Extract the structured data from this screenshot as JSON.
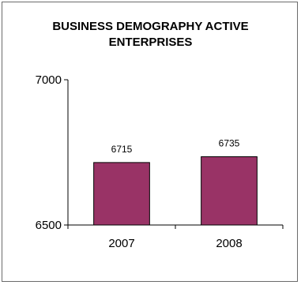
{
  "chart_data": {
    "type": "bar",
    "title": "BUSINESS DEMOGRAPHY ACTIVE\nENTERPRISES",
    "categories": [
      "2007",
      "2008"
    ],
    "values": [
      6715,
      6735
    ],
    "data_labels": [
      "6715",
      "6735"
    ],
    "y_tick_labels": [
      "6500",
      "7000"
    ],
    "y_ticks": [
      6500,
      7000
    ],
    "ylim": [
      6500,
      7000
    ],
    "xlabel": "",
    "ylabel": "",
    "grid": false,
    "legend": "none",
    "bar_color": "#993366",
    "bar_border_color": "#000000"
  }
}
